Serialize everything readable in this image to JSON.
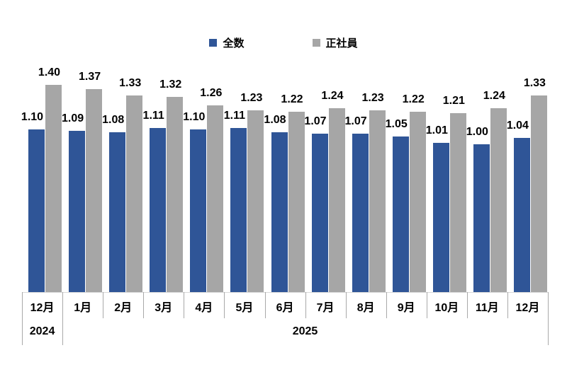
{
  "legend": {
    "items": [
      {
        "label": "全数",
        "color": "#2F5597"
      },
      {
        "label": "正社員",
        "color": "#A6A6A6"
      }
    ]
  },
  "chart_data": {
    "type": "bar",
    "title": "",
    "categories": [
      "12月",
      "1月",
      "2月",
      "3月",
      "4月",
      "5月",
      "6月",
      "7月",
      "8月",
      "9月",
      "10月",
      "11月",
      "12月"
    ],
    "year_groups": [
      {
        "label": "2024",
        "span": 1
      },
      {
        "label": "2025",
        "span": 12
      }
    ],
    "series": [
      {
        "name": "全数",
        "color": "#2F5597",
        "values": [
          1.1,
          1.09,
          1.08,
          1.11,
          1.1,
          1.11,
          1.08,
          1.07,
          1.07,
          1.05,
          1.01,
          1.0,
          1.04
        ]
      },
      {
        "name": "正社員",
        "color": "#A6A6A6",
        "values": [
          1.4,
          1.37,
          1.33,
          1.32,
          1.26,
          1.23,
          1.22,
          1.24,
          1.23,
          1.22,
          1.21,
          1.24,
          1.33
        ]
      }
    ],
    "ylim": [
      0,
      1.5
    ],
    "grid": false,
    "legend_position": "top",
    "value_labels": true,
    "value_format": "0.00",
    "axis_colors": {
      "baseline": "#D9D9D9",
      "tick": "#A9A9A9",
      "text": "#000000"
    }
  }
}
